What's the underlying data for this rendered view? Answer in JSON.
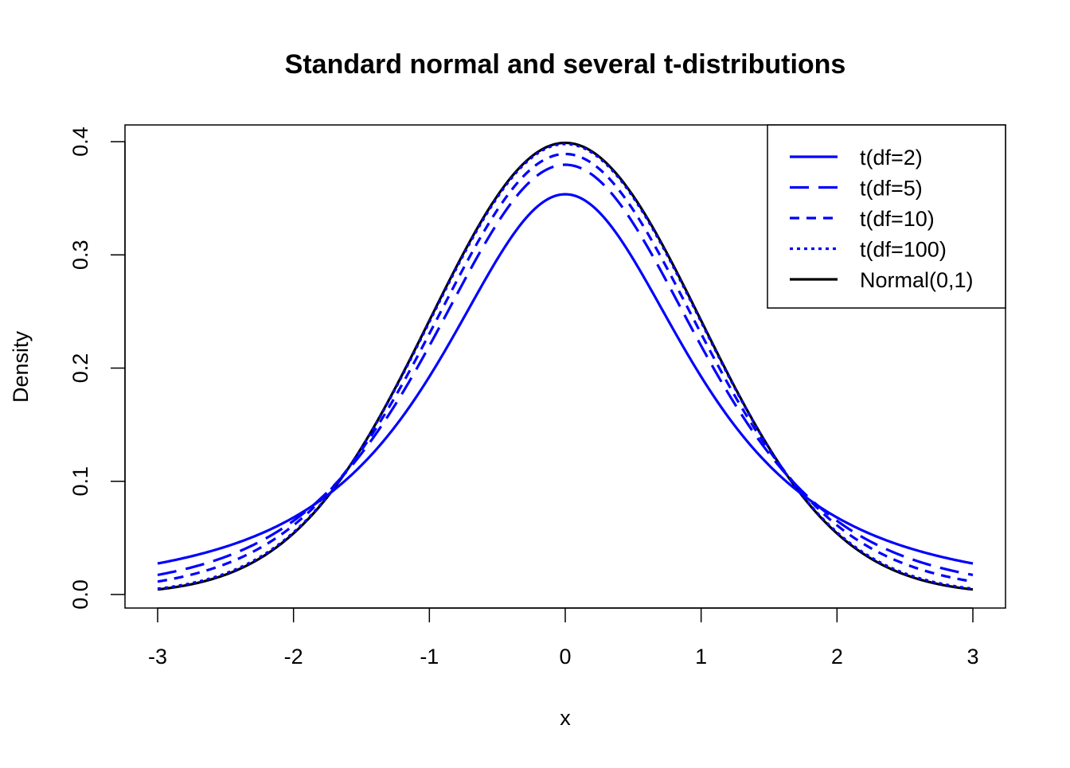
{
  "chart_data": {
    "type": "line",
    "title": "Standard normal and several t-distributions",
    "xlabel": "x",
    "ylabel": "Density",
    "xlim": [
      -3,
      3
    ],
    "ylim": [
      0,
      0.4
    ],
    "xticks": [
      "-3",
      "-2",
      "-1",
      "0",
      "1",
      "2",
      "3"
    ],
    "yticks": [
      "0.0",
      "0.1",
      "0.2",
      "0.3",
      "0.4"
    ],
    "legend_position": "top-right",
    "x": [
      -3,
      -2.5,
      -2,
      -1.5,
      -1,
      -0.5,
      0,
      0.5,
      1,
      1.5,
      2,
      2.5,
      3
    ],
    "series": [
      {
        "name": "t(df=2)",
        "df": 2,
        "color": "#0000ff",
        "linestyle": "solid",
        "values": [
          0.0274,
          0.0422,
          0.068,
          0.1141,
          0.1925,
          0.2963,
          0.3536,
          0.2963,
          0.1925,
          0.1141,
          0.068,
          0.0422,
          0.0274
        ]
      },
      {
        "name": "t(df=5)",
        "df": 5,
        "color": "#0000ff",
        "linestyle": "longdash",
        "values": [
          0.0173,
          0.0333,
          0.0651,
          0.1245,
          0.2197,
          0.3279,
          0.3796,
          0.3279,
          0.2197,
          0.1245,
          0.0651,
          0.0333,
          0.0173
        ]
      },
      {
        "name": "t(df=10)",
        "df": 10,
        "color": "#0000ff",
        "linestyle": "dashed",
        "values": [
          0.0114,
          0.0269,
          0.0611,
          0.1275,
          0.2304,
          0.3397,
          0.3891,
          0.3397,
          0.2304,
          0.1275,
          0.0611,
          0.0269,
          0.0114
        ]
      },
      {
        "name": "t(df=100)",
        "df": 100,
        "color": "#0000ff",
        "linestyle": "dotted",
        "values": [
          0.0051,
          0.0187,
          0.0553,
          0.1301,
          0.2414,
          0.351,
          0.3979,
          0.351,
          0.2414,
          0.1301,
          0.0553,
          0.0187,
          0.0051
        ]
      },
      {
        "name": "Normal(0,1)",
        "df": null,
        "color": "#000000",
        "linestyle": "solid",
        "values": [
          0.0044,
          0.0175,
          0.054,
          0.1295,
          0.242,
          0.3521,
          0.3989,
          0.3521,
          0.242,
          0.1295,
          0.054,
          0.0175,
          0.0044
        ]
      }
    ]
  }
}
